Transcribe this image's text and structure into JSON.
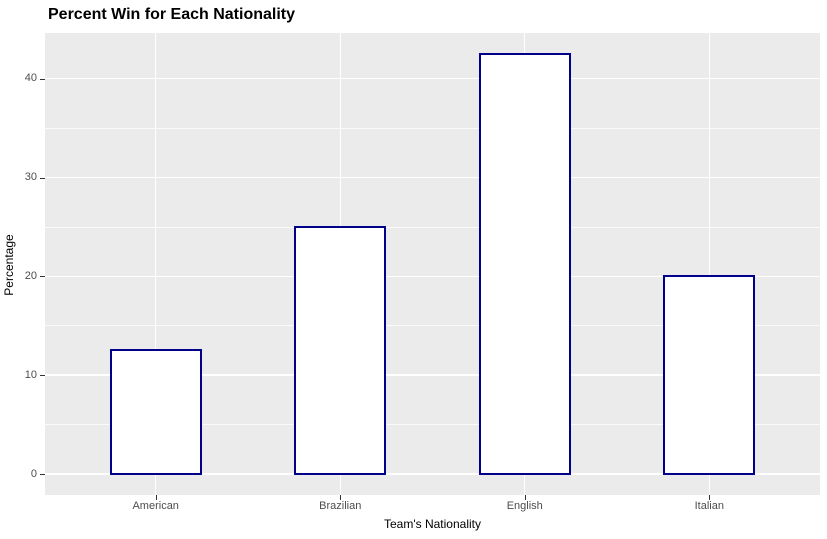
{
  "chart_data": {
    "type": "bar",
    "title": "Percent Win for Each Nationality",
    "xlabel": "Team's Nationality",
    "ylabel": "Percentage",
    "categories": [
      "American",
      "Brazilian",
      "English",
      "Italian"
    ],
    "values": [
      12.5,
      25,
      42.5,
      20
    ],
    "y_major_ticks": [
      0,
      10,
      20,
      30,
      40
    ],
    "y_minor_ticks": [
      5,
      15,
      25,
      35
    ],
    "ylim": [
      0,
      42.5
    ],
    "grid": "on",
    "legend": "none",
    "style": {
      "panel_bg": "#EBEBEB",
      "grid_major_color": "#FFFFFF",
      "grid_minor_color": "#FFFFFF",
      "bar_fill": "#FFFFFF",
      "bar_border": "#00008B",
      "tick_color": "#333333",
      "tick_label_color": "#4D4D4D",
      "axis_title_color": "#000000",
      "title_color": "#000000"
    }
  }
}
